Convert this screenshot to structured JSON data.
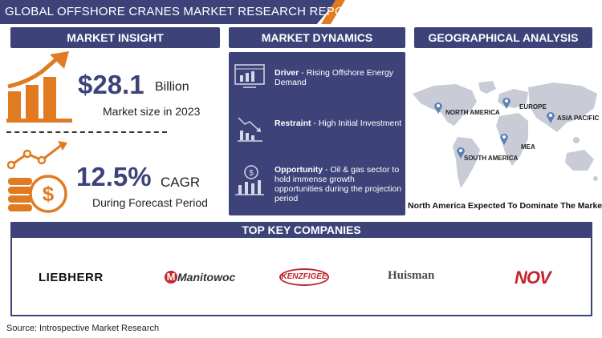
{
  "header": {
    "title": "GLOBAL OFFSHORE CRANES MARKET RESEARCH REPORT"
  },
  "market_insight": {
    "heading": "MARKET INSIGHT",
    "size_value": "$28.1",
    "size_unit": "Billion",
    "size_caption": "Market size in 2023",
    "cagr_value": "12.5%",
    "cagr_unit": "CAGR",
    "cagr_caption": "During Forecast Period"
  },
  "market_dynamics": {
    "heading": "MARKET DYNAMICS",
    "items": [
      {
        "label": "Driver",
        "text": " - Rising Offshore Energy Demand",
        "icon": "driver-monitor-icon"
      },
      {
        "label": "Restraint",
        "text": " - High Initial Investment",
        "icon": "declining-chart-icon"
      },
      {
        "label": "Opportunity",
        "text": " - Oil & gas sector to hold immense growth opportunities during the projection period",
        "icon": "opportunity-growth-icon"
      }
    ]
  },
  "geographical_analysis": {
    "heading": "GEOGRAPHICAL ANALYSIS",
    "regions": [
      "NORTH AMERICA",
      "EUROPE",
      "ASIA PACIFIC",
      "MEA",
      "SOUTH AMERICA"
    ],
    "caption": "North America Expected To Dominate The Market"
  },
  "top_companies": {
    "heading": "TOP KEY COMPANIES",
    "logos": [
      "LIEBHERR",
      "Manitowoc",
      "KENZFIGEE",
      "Huisman",
      "NOV"
    ]
  },
  "footer": {
    "source": "Source: Introspective Market Research"
  },
  "colors": {
    "navy": "#3d4379",
    "orange": "#e07b22",
    "map_gray": "#c9ccd6",
    "pin_blue": "#5a7fb6"
  }
}
